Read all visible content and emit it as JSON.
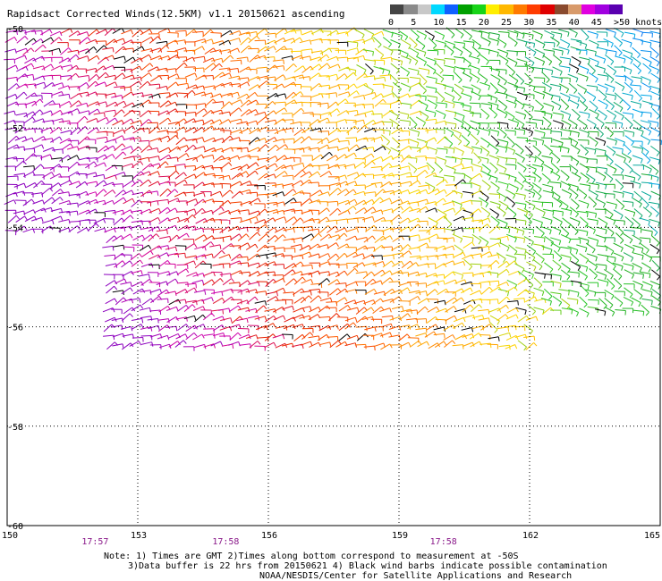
{
  "title": "Rapidsact Corrected Winds(12.5KM) v1.1 20150621 ascending",
  "color_scale": {
    "labels": [
      "0",
      "5",
      "10",
      "15",
      "20",
      "25",
      "30",
      "35",
      "40",
      "45",
      ">50 knots"
    ],
    "colors": [
      "#444444",
      "#8a8a8a",
      "#c8c8c8",
      "#00d8ff",
      "#1060ff",
      "#00a000",
      "#18d418",
      "#ffee00",
      "#ffb800",
      "#ff7a00",
      "#ff3c00",
      "#e00000",
      "#8a4a2e",
      "#d89a6a",
      "#e000e0",
      "#a000e0",
      "#5a00b0"
    ]
  },
  "map": {
    "lat_labels": [
      "-50",
      "-52",
      "-54",
      "-56",
      "-58",
      "-60"
    ],
    "lon_labels": [
      "150",
      "153",
      "156",
      "159",
      "162",
      "165"
    ],
    "time_labels": [
      {
        "text": "17:57",
        "lon": 152
      },
      {
        "text": "17:58",
        "lon": 155
      },
      {
        "text": "17:58",
        "lon": 160
      }
    ],
    "wind_field_description_colors": {
      "calm_blue": "#1060ff",
      "green": "#18b018",
      "yellow": "#ffd000",
      "orange": "#ff9000",
      "red": "#e82000",
      "magenta": "#d000c8",
      "contamination": "#000000"
    }
  },
  "notes": {
    "line1": "Note: 1) Times are GMT 2)Times along bottom correspond to measurement at -50S",
    "line2": "3)Data buffer is 22 hrs from 20150621 4) Black wind barbs indicate possible contamination",
    "line3": "NOAA/NESDIS/Center for Satellite Applications and Research"
  }
}
